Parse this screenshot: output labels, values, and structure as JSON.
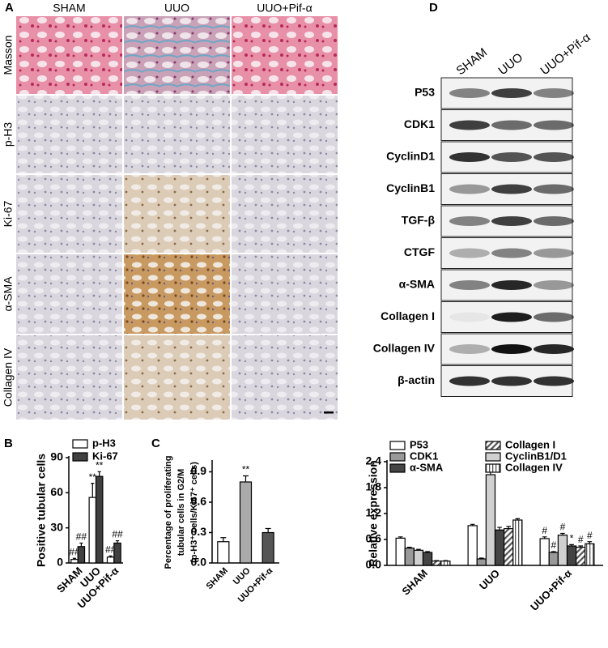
{
  "panel_a": {
    "label": "A",
    "columns": [
      "SHAM",
      "UUO",
      "UUO+Pif-α"
    ],
    "rows": [
      "Masson",
      "p-H3",
      "Ki-67",
      "α-SMA",
      "Collagen IV"
    ]
  },
  "panel_d": {
    "label": "D",
    "columns": [
      "SHAM",
      "UUO",
      "UUO+Pif-α"
    ],
    "rows": [
      "P53",
      "CDK1",
      "CyclinD1",
      "CyclinB1",
      "TGF-β",
      "CTGF",
      "α-SMA",
      "Collagen I",
      "Collagen IV",
      "β-actin"
    ]
  },
  "chart_data": [
    {
      "type": "bar",
      "label": "B",
      "y_label": "Positive tubular cells",
      "categories": [
        "SHAM",
        "UUO",
        "UUO+Pif-α"
      ],
      "series": [
        {
          "name": "p-H3",
          "color": "#ffffff",
          "values": [
            3,
            56,
            5
          ],
          "errors": [
            1,
            12,
            1
          ],
          "marks": [
            "##",
            "**",
            "##"
          ]
        },
        {
          "name": "Ki-67",
          "color": "#404040",
          "values": [
            14,
            74,
            17
          ],
          "errors": [
            3,
            4,
            2
          ],
          "marks": [
            "##",
            "**",
            "##"
          ]
        }
      ],
      "ylim": [
        0,
        90
      ],
      "yticks": [
        0,
        30,
        60,
        90
      ],
      "legend": "top-left"
    },
    {
      "type": "bar",
      "label": "C",
      "y_label": [
        "Percentage of proliferating",
        "tubular cells in G2/M",
        "(p-H3⁺ cells/Ki67⁺ cells)"
      ],
      "categories": [
        "SHAM",
        "UUO",
        "UUO+Pif-α"
      ],
      "series": [
        {
          "colors": [
            "#ffffff",
            "#aaaaaa",
            "#555555"
          ],
          "values": [
            0.21,
            0.8,
            0.3
          ],
          "errors": [
            0.04,
            0.06,
            0.04
          ],
          "marks": [
            null,
            "**",
            null
          ]
        }
      ],
      "ylim": [
        0,
        1.0
      ],
      "yticks": [
        {
          "value": 0,
          "label": "0.0"
        },
        0.3,
        0.6,
        0.9
      ]
    },
    {
      "type": "bar",
      "y_label": "Relative expression",
      "categories": [
        "SHAM",
        "UUO",
        "UUO+Pif-α"
      ],
      "series": [
        {
          "name": "P53",
          "color": "#ffffff",
          "values": [
            0.63,
            0.92,
            0.62
          ],
          "errors": [
            0.03,
            0.03,
            0.04
          ],
          "marks": [
            null,
            null,
            "#"
          ]
        },
        {
          "name": "CDK1",
          "color": "#999999",
          "values": [
            0.4,
            0.15,
            0.3
          ],
          "errors": [
            0.02,
            0.02,
            0.02
          ],
          "marks": [
            null,
            null,
            "#"
          ]
        },
        {
          "name": "CyclinB1/D1",
          "color": "#d0d0d0",
          "values": [
            0.35,
            2.1,
            0.7
          ],
          "errors": [
            0.02,
            0.12,
            0.04
          ],
          "marks": [
            null,
            null,
            "#"
          ]
        },
        {
          "name": "α-SMA",
          "color": "#444444",
          "values": [
            0.3,
            0.82,
            0.45
          ],
          "errors": [
            0.02,
            0.06,
            0.03
          ],
          "marks": [
            null,
            null,
            "*"
          ]
        },
        {
          "name": "Collagen I",
          "color": "#555555",
          "pattern": "diagonal",
          "values": [
            0.1,
            0.85,
            0.42
          ],
          "errors": [
            0.01,
            0.05,
            0.03
          ],
          "marks": [
            null,
            null,
            "#"
          ]
        },
        {
          "name": "Collagen IV",
          "color": "#555555",
          "pattern": "vertical",
          "values": [
            0.1,
            1.05,
            0.5
          ],
          "errors": [
            0.01,
            0.03,
            0.05
          ],
          "marks": [
            null,
            null,
            "#"
          ]
        }
      ],
      "legend_order": [
        0,
        1,
        3,
        4,
        2,
        5
      ],
      "ylim": [
        0,
        2.4
      ],
      "yticks": [
        {
          "value": 0,
          "label": "0.0"
        },
        0.6,
        1.2,
        1.8,
        2.4
      ],
      "legend": "top"
    }
  ]
}
